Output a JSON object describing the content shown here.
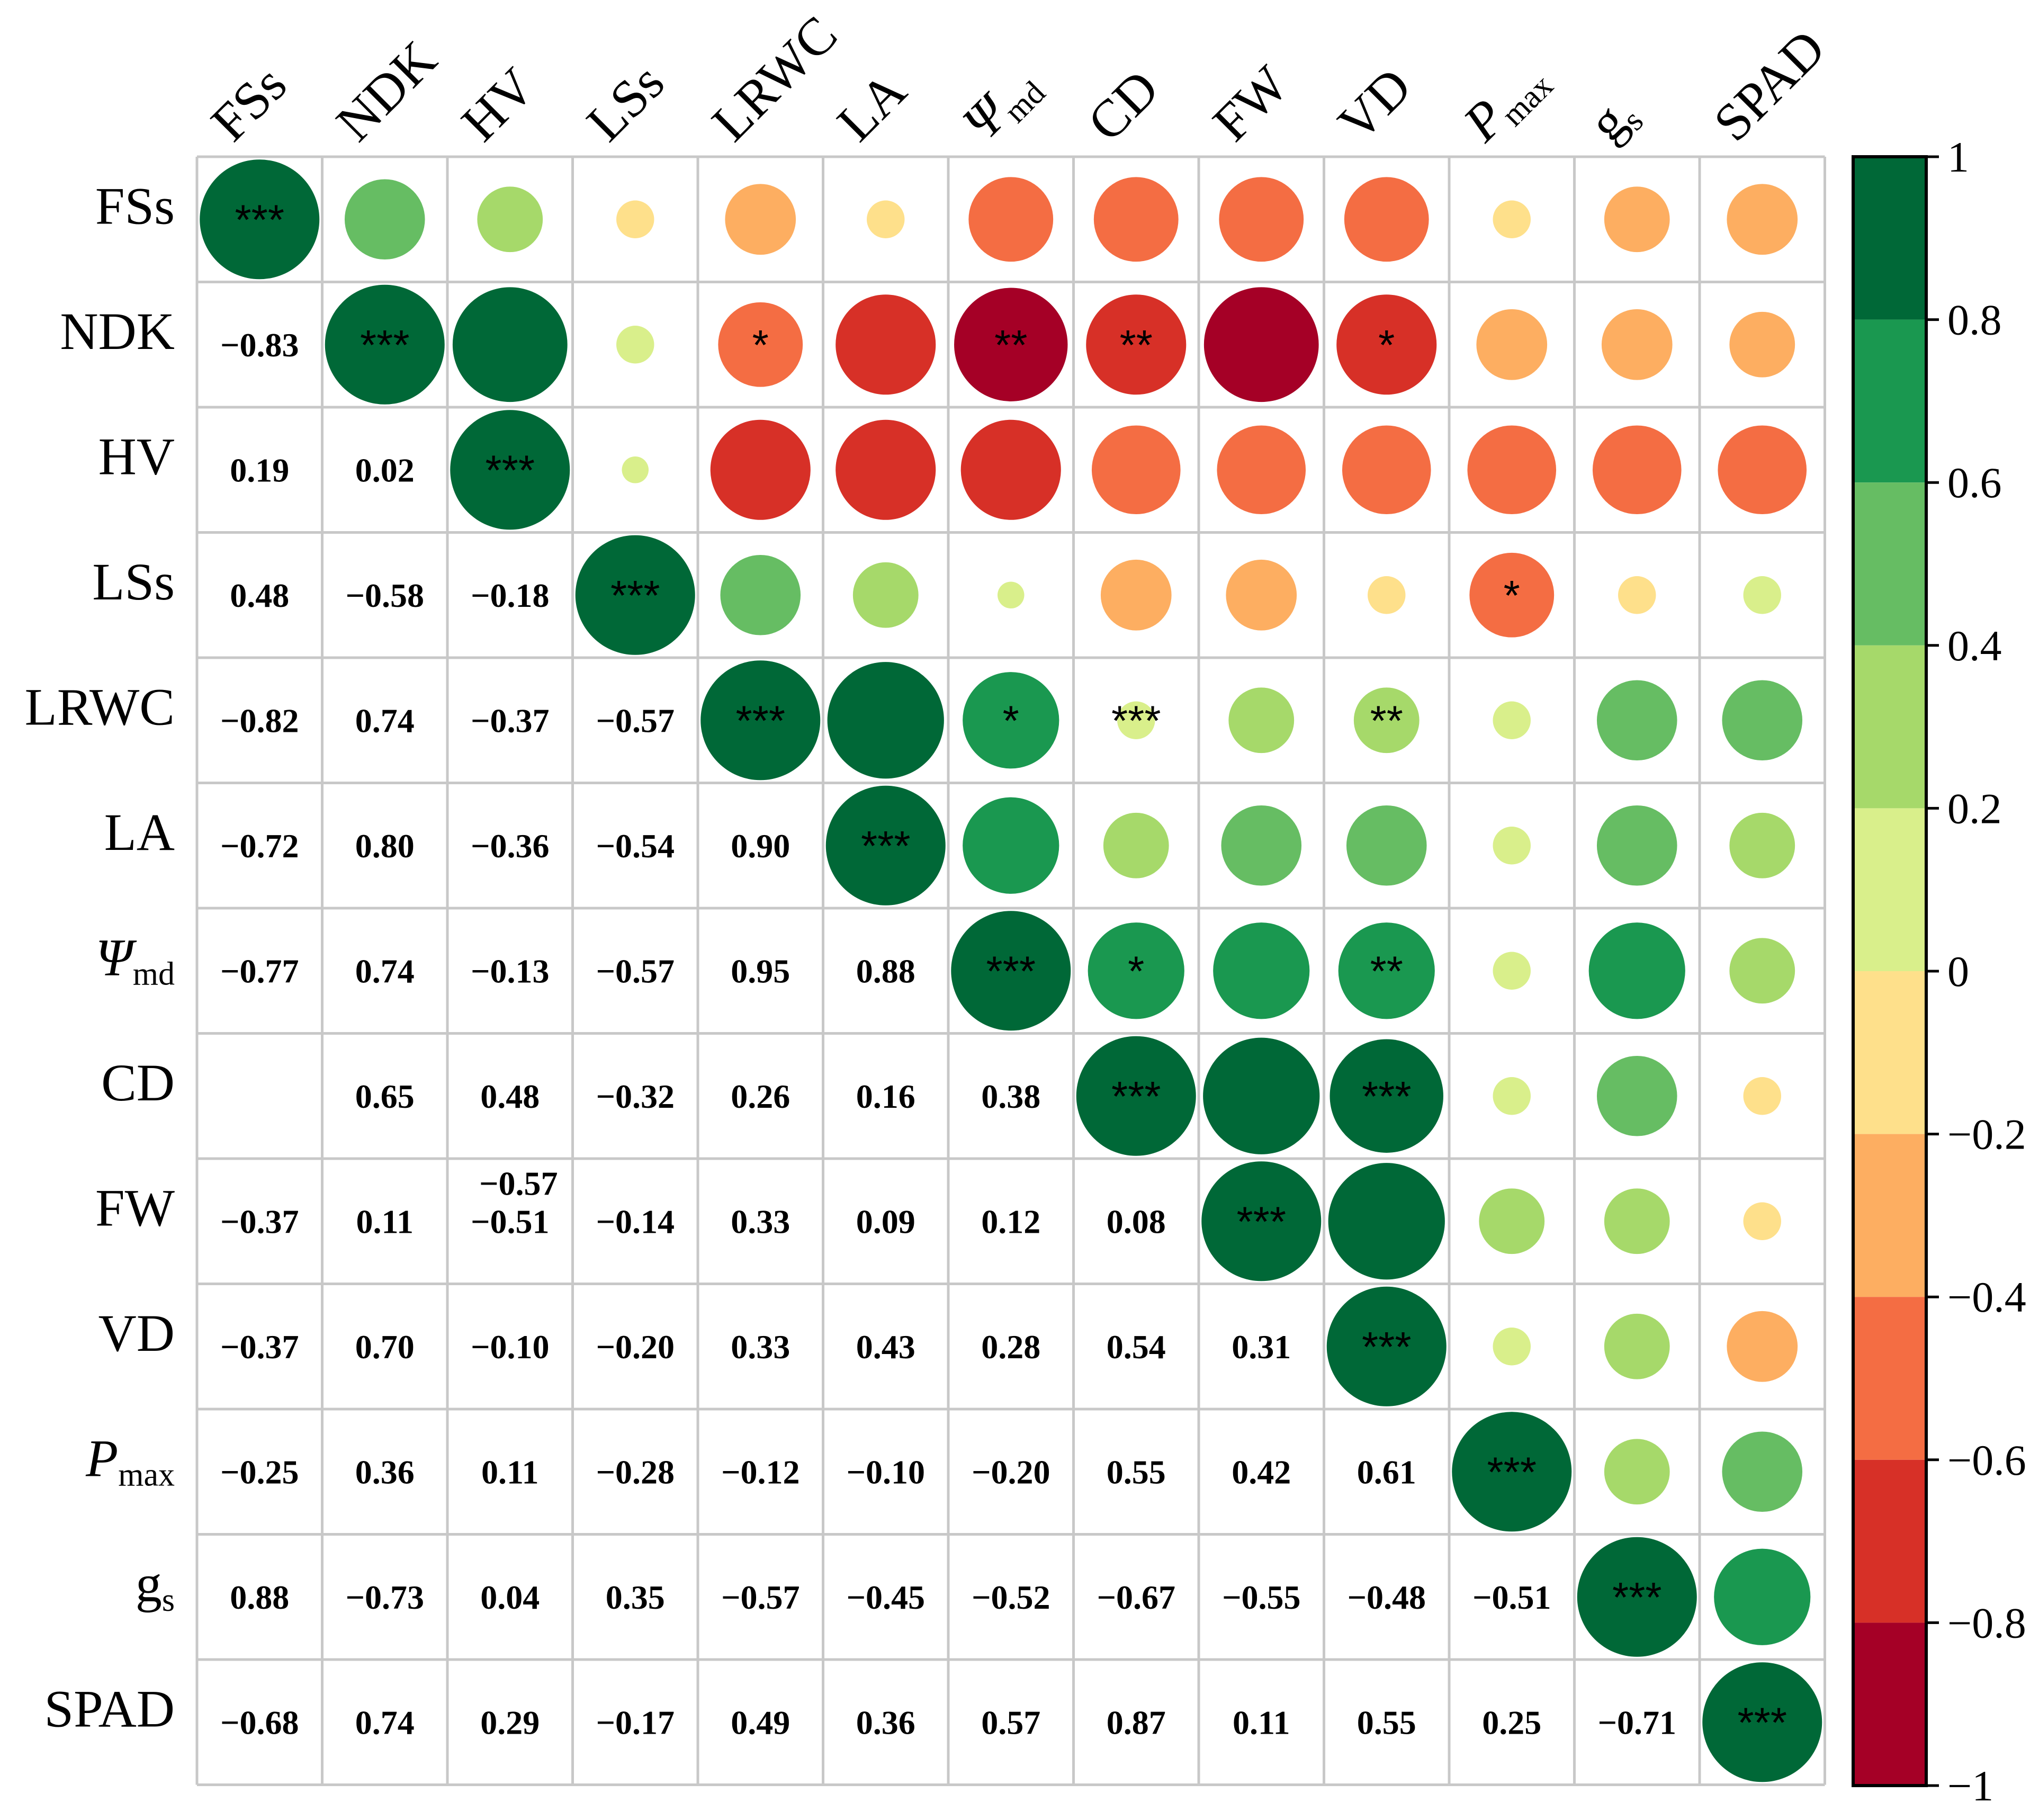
{
  "chart_data": {
    "type": "heatmap",
    "title": "",
    "variables": [
      {
        "id": "FSs",
        "label": "FSs",
        "italic": false,
        "sub": ""
      },
      {
        "id": "NDK",
        "label": "NDK",
        "italic": false,
        "sub": ""
      },
      {
        "id": "HV",
        "label": "HV",
        "italic": false,
        "sub": ""
      },
      {
        "id": "LSs",
        "label": "LSs",
        "italic": false,
        "sub": ""
      },
      {
        "id": "LRWC",
        "label": "LRWC",
        "italic": false,
        "sub": ""
      },
      {
        "id": "LA",
        "label": "LA",
        "italic": false,
        "sub": ""
      },
      {
        "id": "Psi_md",
        "label": "Ψ",
        "italic": true,
        "sub": "md"
      },
      {
        "id": "CD",
        "label": "CD",
        "italic": false,
        "sub": ""
      },
      {
        "id": "FW",
        "label": "FW",
        "italic": false,
        "sub": ""
      },
      {
        "id": "VD",
        "label": "VD",
        "italic": false,
        "sub": ""
      },
      {
        "id": "Pmax",
        "label": "P",
        "italic": true,
        "sub": "max"
      },
      {
        "id": "gs",
        "label": "g",
        "italic": false,
        "sub": "s"
      },
      {
        "id": "SPAD",
        "label": "SPAD",
        "italic": false,
        "sub": ""
      }
    ],
    "lower_values": [
      [],
      [
        "−0.83"
      ],
      [
        "0.19",
        "0.02"
      ],
      [
        "0.48",
        "−0.58",
        "−0.18"
      ],
      [
        "−0.82",
        "0.74",
        "−0.37",
        "−0.57"
      ],
      [
        "−0.72",
        "0.80",
        "−0.36",
        "−0.54",
        "0.90"
      ],
      [
        "−0.77",
        "0.74",
        "−0.13",
        "−0.57",
        "0.95",
        "0.88"
      ],
      [
        "",
        "0.65",
        "0.48",
        "−0.32",
        "0.26",
        "0.16",
        "0.38"
      ],
      [
        "−0.37",
        "0.11",
        "−0.51",
        "−0.14",
        "0.33",
        "0.09",
        "0.12",
        "0.08"
      ],
      [
        "−0.37",
        "0.70",
        "−0.10",
        "−0.20",
        "0.33",
        "0.43",
        "0.28",
        "0.54",
        "0.31"
      ],
      [
        "−0.25",
        "0.36",
        "0.11",
        "−0.28",
        "−0.12",
        "−0.10",
        "−0.20",
        "0.55",
        "0.42",
        "0.61"
      ],
      [
        "0.88",
        "−0.73",
        "0.04",
        "0.35",
        "−0.57",
        "−0.45",
        "−0.52",
        "−0.67",
        "−0.55",
        "−0.48",
        "−0.51"
      ],
      [
        "−0.68",
        "0.74",
        "0.29",
        "−0.17",
        "0.49",
        "0.36",
        "0.57",
        "0.87",
        "0.11",
        "0.55",
        "0.25",
        "−0.71"
      ]
    ],
    "extra_labels": [
      {
        "row": 8,
        "col": 2,
        "text": "−0.57",
        "position": "above"
      }
    ],
    "upper_circles": [
      {
        "row": 0,
        "col": 0,
        "r": 1.0,
        "sig": "***"
      },
      {
        "row": 0,
        "col": 1,
        "r": 0.45,
        "sig": ""
      },
      {
        "row": 0,
        "col": 2,
        "r": 0.3,
        "sig": ""
      },
      {
        "row": 0,
        "col": 3,
        "r": -0.1,
        "sig": ""
      },
      {
        "row": 0,
        "col": 4,
        "r": -0.35,
        "sig": ""
      },
      {
        "row": 0,
        "col": 5,
        "r": -0.1,
        "sig": ""
      },
      {
        "row": 0,
        "col": 6,
        "r": -0.5,
        "sig": ""
      },
      {
        "row": 0,
        "col": 7,
        "r": -0.5,
        "sig": ""
      },
      {
        "row": 0,
        "col": 8,
        "r": -0.5,
        "sig": ""
      },
      {
        "row": 0,
        "col": 9,
        "r": -0.5,
        "sig": ""
      },
      {
        "row": 0,
        "col": 10,
        "r": -0.1,
        "sig": ""
      },
      {
        "row": 0,
        "col": 11,
        "r": -0.3,
        "sig": ""
      },
      {
        "row": 0,
        "col": 12,
        "r": -0.35,
        "sig": ""
      },
      {
        "row": 1,
        "col": 1,
        "r": 1.0,
        "sig": "***"
      },
      {
        "row": 1,
        "col": 2,
        "r": 0.92,
        "sig": ""
      },
      {
        "row": 1,
        "col": 3,
        "r": 0.1,
        "sig": ""
      },
      {
        "row": 1,
        "col": 4,
        "r": -0.5,
        "sig": "*"
      },
      {
        "row": 1,
        "col": 5,
        "r": -0.7,
        "sig": ""
      },
      {
        "row": 1,
        "col": 6,
        "r": -0.9,
        "sig": "**"
      },
      {
        "row": 1,
        "col": 7,
        "r": -0.7,
        "sig": "**"
      },
      {
        "row": 1,
        "col": 8,
        "r": -0.92,
        "sig": ""
      },
      {
        "row": 1,
        "col": 9,
        "r": -0.7,
        "sig": "*"
      },
      {
        "row": 1,
        "col": 10,
        "r": -0.35,
        "sig": ""
      },
      {
        "row": 1,
        "col": 11,
        "r": -0.35,
        "sig": ""
      },
      {
        "row": 1,
        "col": 12,
        "r": -0.3,
        "sig": ""
      },
      {
        "row": 2,
        "col": 2,
        "r": 1.0,
        "sig": "***"
      },
      {
        "row": 2,
        "col": 3,
        "r": 0.05,
        "sig": ""
      },
      {
        "row": 2,
        "col": 4,
        "r": -0.7,
        "sig": ""
      },
      {
        "row": 2,
        "col": 5,
        "r": -0.7,
        "sig": ""
      },
      {
        "row": 2,
        "col": 6,
        "r": -0.7,
        "sig": ""
      },
      {
        "row": 2,
        "col": 7,
        "r": -0.55,
        "sig": ""
      },
      {
        "row": 2,
        "col": 8,
        "r": -0.55,
        "sig": ""
      },
      {
        "row": 2,
        "col": 9,
        "r": -0.55,
        "sig": ""
      },
      {
        "row": 2,
        "col": 10,
        "r": -0.55,
        "sig": ""
      },
      {
        "row": 2,
        "col": 11,
        "r": -0.55,
        "sig": ""
      },
      {
        "row": 2,
        "col": 12,
        "r": -0.55,
        "sig": ""
      },
      {
        "row": 3,
        "col": 3,
        "r": 1.0,
        "sig": "***"
      },
      {
        "row": 3,
        "col": 4,
        "r": 0.45,
        "sig": ""
      },
      {
        "row": 3,
        "col": 5,
        "r": 0.3,
        "sig": ""
      },
      {
        "row": 3,
        "col": 6,
        "r": 0.05,
        "sig": ""
      },
      {
        "row": 3,
        "col": 7,
        "r": -0.35,
        "sig": ""
      },
      {
        "row": 3,
        "col": 8,
        "r": -0.35,
        "sig": ""
      },
      {
        "row": 3,
        "col": 9,
        "r": -0.1,
        "sig": ""
      },
      {
        "row": 3,
        "col": 10,
        "r": -0.5,
        "sig": "*"
      },
      {
        "row": 3,
        "col": 11,
        "r": -0.1,
        "sig": ""
      },
      {
        "row": 3,
        "col": 12,
        "r": 0.1,
        "sig": ""
      },
      {
        "row": 4,
        "col": 4,
        "r": 1.0,
        "sig": "***"
      },
      {
        "row": 4,
        "col": 5,
        "r": 0.95,
        "sig": ""
      },
      {
        "row": 4,
        "col": 6,
        "r": 0.65,
        "sig": "*"
      },
      {
        "row": 4,
        "col": 7,
        "r": 0.1,
        "sig": "***"
      },
      {
        "row": 4,
        "col": 8,
        "r": 0.3,
        "sig": ""
      },
      {
        "row": 4,
        "col": 9,
        "r": 0.3,
        "sig": "**"
      },
      {
        "row": 4,
        "col": 10,
        "r": 0.1,
        "sig": ""
      },
      {
        "row": 4,
        "col": 11,
        "r": 0.45,
        "sig": ""
      },
      {
        "row": 4,
        "col": 12,
        "r": 0.45,
        "sig": ""
      },
      {
        "row": 5,
        "col": 5,
        "r": 1.0,
        "sig": "***"
      },
      {
        "row": 5,
        "col": 6,
        "r": 0.65,
        "sig": ""
      },
      {
        "row": 5,
        "col": 7,
        "r": 0.3,
        "sig": ""
      },
      {
        "row": 5,
        "col": 8,
        "r": 0.45,
        "sig": ""
      },
      {
        "row": 5,
        "col": 9,
        "r": 0.45,
        "sig": ""
      },
      {
        "row": 5,
        "col": 10,
        "r": 0.1,
        "sig": ""
      },
      {
        "row": 5,
        "col": 11,
        "r": 0.45,
        "sig": ""
      },
      {
        "row": 5,
        "col": 12,
        "r": 0.3,
        "sig": ""
      },
      {
        "row": 6,
        "col": 6,
        "r": 1.0,
        "sig": "***"
      },
      {
        "row": 6,
        "col": 7,
        "r": 0.65,
        "sig": "*"
      },
      {
        "row": 6,
        "col": 8,
        "r": 0.65,
        "sig": ""
      },
      {
        "row": 6,
        "col": 9,
        "r": 0.65,
        "sig": "**"
      },
      {
        "row": 6,
        "col": 10,
        "r": 0.1,
        "sig": ""
      },
      {
        "row": 6,
        "col": 11,
        "r": 0.65,
        "sig": ""
      },
      {
        "row": 6,
        "col": 12,
        "r": 0.3,
        "sig": ""
      },
      {
        "row": 7,
        "col": 7,
        "r": 1.0,
        "sig": "***"
      },
      {
        "row": 7,
        "col": 8,
        "r": 0.95,
        "sig": ""
      },
      {
        "row": 7,
        "col": 9,
        "r": 0.9,
        "sig": "***"
      },
      {
        "row": 7,
        "col": 10,
        "r": 0.1,
        "sig": ""
      },
      {
        "row": 7,
        "col": 11,
        "r": 0.45,
        "sig": ""
      },
      {
        "row": 7,
        "col": 12,
        "r": -0.1,
        "sig": ""
      },
      {
        "row": 8,
        "col": 8,
        "r": 1.0,
        "sig": "***"
      },
      {
        "row": 8,
        "col": 9,
        "r": 0.95,
        "sig": ""
      },
      {
        "row": 8,
        "col": 10,
        "r": 0.3,
        "sig": ""
      },
      {
        "row": 8,
        "col": 11,
        "r": 0.3,
        "sig": ""
      },
      {
        "row": 8,
        "col": 12,
        "r": -0.1,
        "sig": ""
      },
      {
        "row": 9,
        "col": 9,
        "r": 1.0,
        "sig": "***"
      },
      {
        "row": 9,
        "col": 10,
        "r": 0.1,
        "sig": ""
      },
      {
        "row": 9,
        "col": 11,
        "r": 0.3,
        "sig": ""
      },
      {
        "row": 9,
        "col": 12,
        "r": -0.35,
        "sig": ""
      },
      {
        "row": 10,
        "col": 10,
        "r": 1.0,
        "sig": "***"
      },
      {
        "row": 10,
        "col": 11,
        "r": 0.3,
        "sig": ""
      },
      {
        "row": 10,
        "col": 12,
        "r": 0.45,
        "sig": ""
      },
      {
        "row": 11,
        "col": 11,
        "r": 1.0,
        "sig": "***"
      },
      {
        "row": 11,
        "col": 12,
        "r": 0.65,
        "sig": ""
      },
      {
        "row": 12,
        "col": 12,
        "r": 1.0,
        "sig": "***"
      }
    ],
    "colorbar": {
      "range": [
        -1,
        1
      ],
      "ticks": [
        1,
        0.8,
        0.6,
        0.4,
        0.2,
        0,
        -0.2,
        -0.4,
        -0.6,
        -0.8,
        -1
      ],
      "tick_labels": [
        "1",
        "0.8",
        "0.6",
        "0.4",
        "0.2",
        "0",
        "−0.2",
        "−0.4",
        "−0.6",
        "−0.8",
        "−1"
      ],
      "bins": [
        {
          "from": 0.8,
          "to": 1.0,
          "color": "#006837"
        },
        {
          "from": 0.6,
          "to": 0.8,
          "color": "#1a9850"
        },
        {
          "from": 0.4,
          "to": 0.6,
          "color": "#66bd63"
        },
        {
          "from": 0.2,
          "to": 0.4,
          "color": "#a6d96a"
        },
        {
          "from": 0.0,
          "to": 0.2,
          "color": "#d9ef8b"
        },
        {
          "from": -0.2,
          "to": 0.0,
          "color": "#fee08b"
        },
        {
          "from": -0.4,
          "to": -0.2,
          "color": "#fdae61"
        },
        {
          "from": -0.6,
          "to": -0.4,
          "color": "#f46d43"
        },
        {
          "from": -0.8,
          "to": -0.6,
          "color": "#d73027"
        },
        {
          "from": -1.0,
          "to": -0.8,
          "color": "#a50026"
        }
      ]
    }
  }
}
